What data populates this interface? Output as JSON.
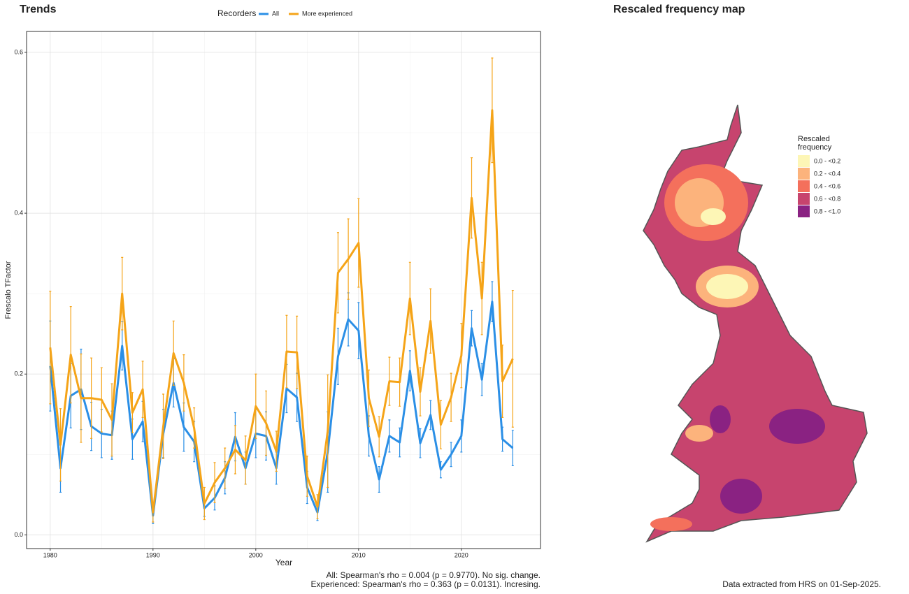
{
  "chart_data": {
    "type": "line",
    "title": "Trends",
    "legend_title": "Recorders",
    "x_label": "Year",
    "y_label": "Frescalo TFactor",
    "x": [
      1980,
      1981,
      1982,
      1983,
      1984,
      1985,
      1986,
      1987,
      1988,
      1989,
      1990,
      1991,
      1992,
      1993,
      1994,
      1995,
      1996,
      1997,
      1998,
      1999,
      2000,
      2001,
      2002,
      2003,
      2004,
      2005,
      2006,
      2007,
      2008,
      2009,
      2010,
      2011,
      2012,
      2013,
      2014,
      2015,
      2016,
      2017,
      2018,
      2019,
      2020,
      2021,
      2022,
      2023,
      2024,
      2025
    ],
    "series": [
      {
        "name": "All",
        "color": "#2b8fe6",
        "values": [
          0.21,
          0.083,
          0.173,
          0.181,
          0.135,
          0.126,
          0.124,
          0.235,
          0.119,
          0.141,
          0.024,
          0.126,
          0.189,
          0.134,
          0.116,
          0.033,
          0.046,
          0.071,
          0.122,
          0.083,
          0.126,
          0.123,
          0.083,
          0.182,
          0.171,
          0.059,
          0.028,
          0.103,
          0.222,
          0.268,
          0.254,
          0.123,
          0.069,
          0.123,
          0.115,
          0.204,
          0.114,
          0.149,
          0.081,
          0.1,
          0.123,
          0.257,
          0.193,
          0.29,
          0.119,
          0.108
        ],
        "errors": [
          0.056,
          0.03,
          0.04,
          0.05,
          0.03,
          0.03,
          0.03,
          0.03,
          0.025,
          0.025,
          0.01,
          0.03,
          0.03,
          0.03,
          0.025,
          0.01,
          0.015,
          0.02,
          0.03,
          0.02,
          0.03,
          0.03,
          0.02,
          0.03,
          0.03,
          0.02,
          0.01,
          0.05,
          0.035,
          0.033,
          0.035,
          0.025,
          0.016,
          0.02,
          0.018,
          0.025,
          0.018,
          0.018,
          0.01,
          0.015,
          0.02,
          0.022,
          0.02,
          0.025,
          0.015,
          0.022
        ]
      },
      {
        "name": "More experienced",
        "color": "#f5a418",
        "values": [
          0.233,
          0.112,
          0.224,
          0.17,
          0.17,
          0.168,
          0.143,
          0.3,
          0.152,
          0.181,
          0.028,
          0.135,
          0.226,
          0.189,
          0.133,
          0.039,
          0.065,
          0.083,
          0.106,
          0.093,
          0.16,
          0.139,
          0.104,
          0.228,
          0.227,
          0.073,
          0.035,
          0.129,
          0.326,
          0.343,
          0.363,
          0.17,
          0.122,
          0.191,
          0.19,
          0.294,
          0.178,
          0.266,
          0.137,
          0.171,
          0.223,
          0.419,
          0.294,
          0.528,
          0.191,
          0.219
        ],
        "errors": [
          0.07,
          0.045,
          0.06,
          0.055,
          0.05,
          0.04,
          0.045,
          0.045,
          0.025,
          0.035,
          0.012,
          0.04,
          0.04,
          0.035,
          0.025,
          0.02,
          0.025,
          0.025,
          0.03,
          0.03,
          0.04,
          0.04,
          0.025,
          0.045,
          0.045,
          0.025,
          0.015,
          0.07,
          0.05,
          0.05,
          0.055,
          0.035,
          0.025,
          0.03,
          0.03,
          0.045,
          0.03,
          0.04,
          0.03,
          0.03,
          0.04,
          0.05,
          0.045,
          0.065,
          0.045,
          0.085
        ]
      }
    ],
    "xlim": [
      1977.7,
      2027.7
    ],
    "ylim": [
      -0.017,
      0.626
    ],
    "xticks": [
      1980,
      1990,
      2000,
      2010,
      2020
    ],
    "yticks": [
      {
        "value": 0,
        "label": "0.0"
      },
      0.2,
      0.4,
      0.6
    ],
    "grid": true,
    "annotations": [
      "All: Spearman's rho = 0.004 (p = 0.9770). No sig. change.",
      "Experienced: Spearman's rho = 0.363 (p = 0.0131). Incresing."
    ]
  },
  "map": {
    "title": "Rescaled frequency map",
    "legend_title": [
      "Rescaled",
      "frequency"
    ],
    "legend": [
      {
        "label": "0.0 - <0.2",
        "color": "#fdf6b6"
      },
      {
        "label": "0.2 - <0.4",
        "color": "#fcb37c"
      },
      {
        "label": "0.4 - <0.6",
        "color": "#f4705c"
      },
      {
        "label": "0.6 - <0.8",
        "color": "#c7446e"
      },
      {
        "label": "0.8 - <1.0",
        "color": "#8a2282"
      }
    ],
    "footer": "Data extracted from HRS on 01-Sep-2025."
  }
}
